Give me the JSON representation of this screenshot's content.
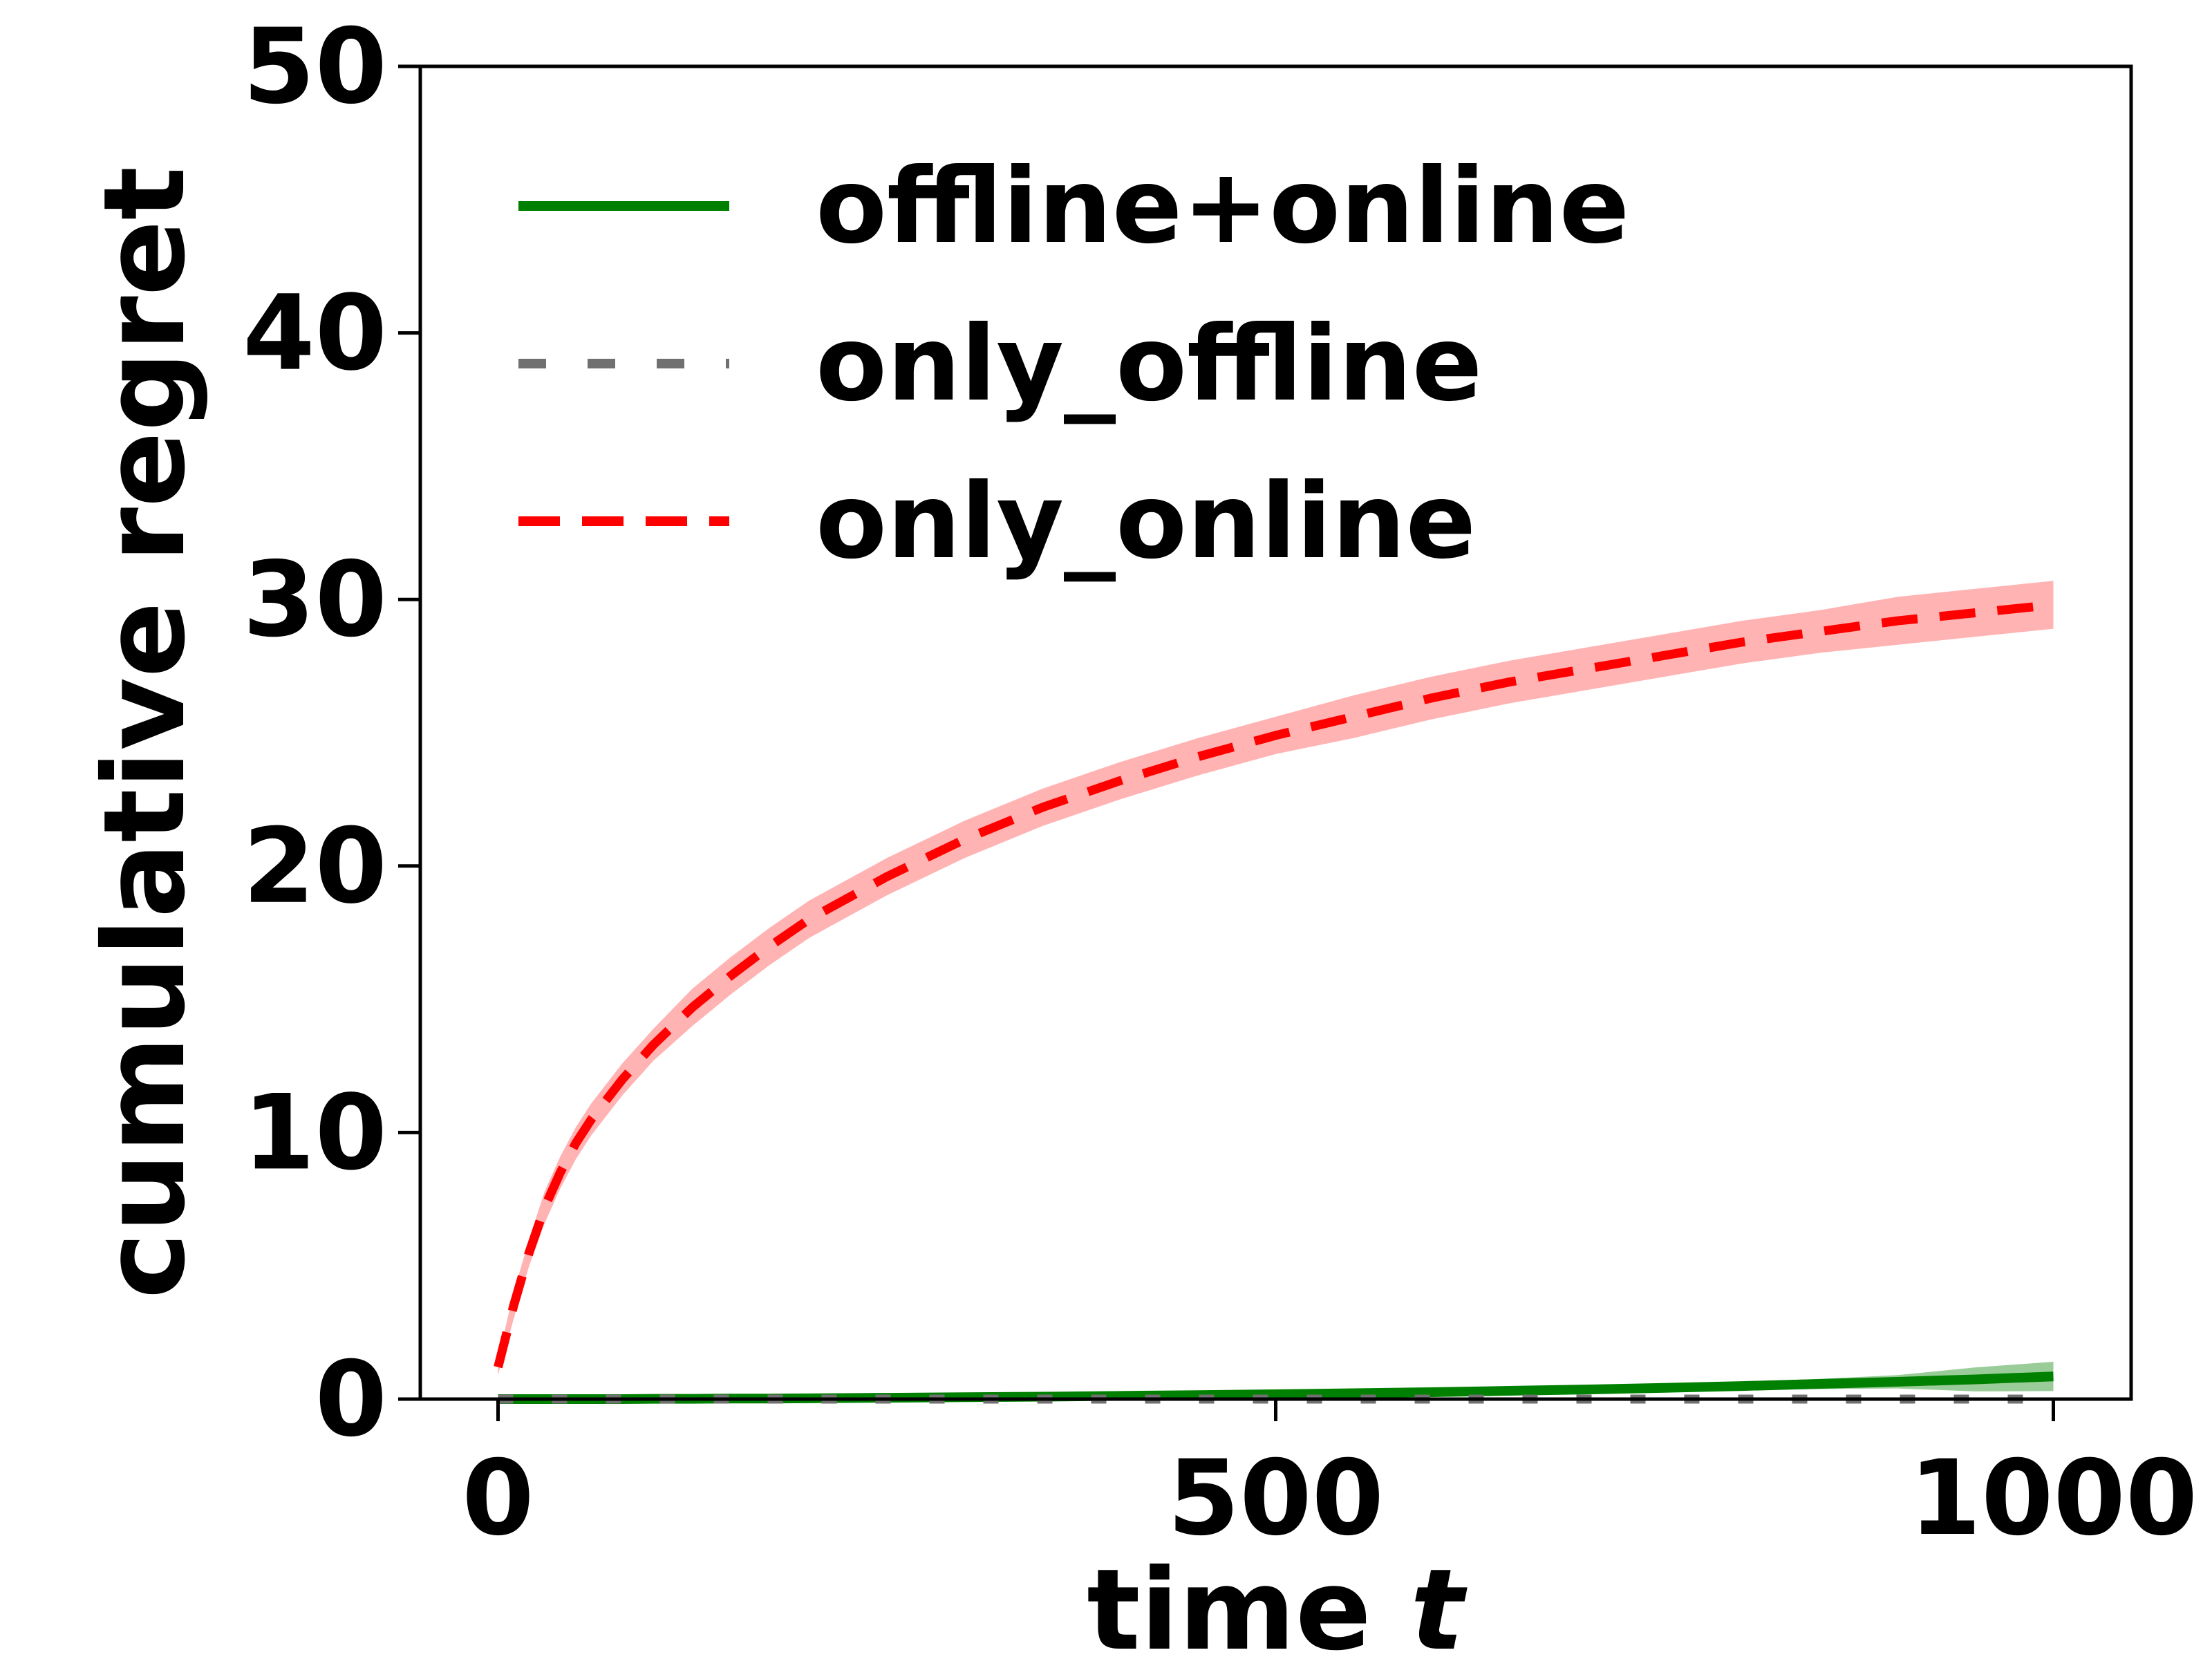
{
  "chart_data": {
    "type": "line",
    "title": "",
    "xlabel": "time",
    "xlabel_var": "t",
    "ylabel": "cumulative regret",
    "xlim": [
      -50,
      1050
    ],
    "ylim": [
      0,
      50
    ],
    "x_ticks": [
      0,
      500,
      1000
    ],
    "y_ticks": [
      0,
      10,
      20,
      30,
      40,
      50
    ],
    "grid": false,
    "legend": {
      "position": "upper-left"
    },
    "x": [
      0,
      10,
      20,
      30,
      40,
      50,
      60,
      80,
      100,
      125,
      150,
      175,
      200,
      250,
      300,
      350,
      400,
      450,
      500,
      550,
      600,
      650,
      700,
      750,
      800,
      850,
      900,
      950,
      1000
    ],
    "series": [
      {
        "name": "offline+online",
        "color": "#008000",
        "band_color": "#99cc99",
        "style": "solid",
        "values": [
          0,
          0,
          0,
          0,
          0,
          0,
          0,
          0,
          0.01,
          0.01,
          0.02,
          0.02,
          0.03,
          0.05,
          0.07,
          0.09,
          0.12,
          0.15,
          0.18,
          0.22,
          0.26,
          0.31,
          0.36,
          0.42,
          0.49,
          0.57,
          0.65,
          0.74,
          0.85
        ],
        "band": [
          0,
          0,
          0,
          0,
          0,
          0,
          0,
          0,
          0,
          0,
          0,
          0,
          0.01,
          0.01,
          0.02,
          0.03,
          0.04,
          0.05,
          0.06,
          0.07,
          0.08,
          0.1,
          0.12,
          0.14,
          0.16,
          0.19,
          0.25,
          0.45,
          0.55
        ]
      },
      {
        "name": "only_offline",
        "color": "#707070",
        "style": "dotted",
        "values": [
          0,
          0,
          0,
          0,
          0,
          0,
          0,
          0,
          0,
          0,
          0,
          0,
          0,
          0,
          0,
          0,
          0,
          0,
          0,
          0,
          0,
          0,
          0,
          0,
          0,
          0,
          0,
          0,
          0
        ]
      },
      {
        "name": "only_online",
        "color": "#ff0000",
        "band_color": "#ffb3b3",
        "style": "dashed",
        "values": [
          1.2,
          3.5,
          5.5,
          7.2,
          8.5,
          9.6,
          10.5,
          12.0,
          13.3,
          14.7,
          15.9,
          17.0,
          18.0,
          19.6,
          21.0,
          22.2,
          23.2,
          24.1,
          24.9,
          25.6,
          26.3,
          26.9,
          27.4,
          27.9,
          28.4,
          28.8,
          29.2,
          29.5,
          29.8
        ],
        "band": [
          0.3,
          0.5,
          0.5,
          0.6,
          0.6,
          0.6,
          0.6,
          0.6,
          0.6,
          0.7,
          0.7,
          0.7,
          0.7,
          0.7,
          0.7,
          0.7,
          0.7,
          0.7,
          0.7,
          0.8,
          0.8,
          0.8,
          0.8,
          0.8,
          0.8,
          0.8,
          0.9,
          0.9,
          0.9
        ]
      }
    ]
  }
}
